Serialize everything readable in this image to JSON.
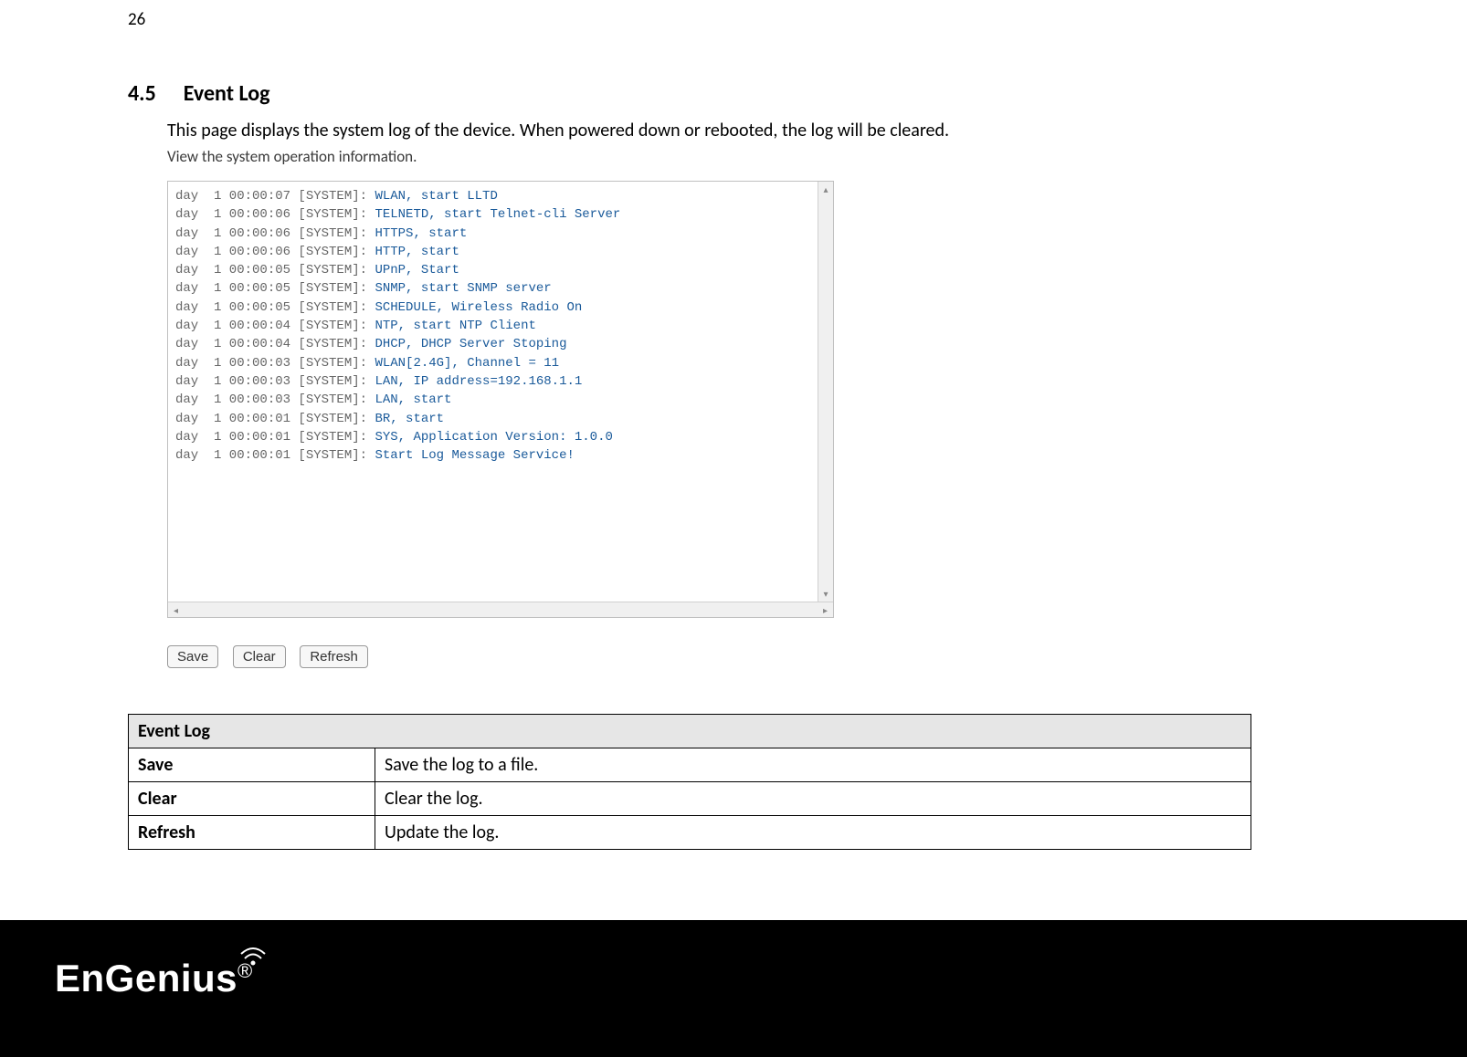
{
  "page_number": "26",
  "heading_number": "4.5",
  "heading_title": "Event Log",
  "description": "This page displays the system log of the device. When powered down or rebooted, the log will be cleared.",
  "subcaption": "View the system operation information.",
  "log_lines": [
    {
      "p": "day  1 00:00:07 [SYSTEM]: ",
      "m": "WLAN, start LLTD"
    },
    {
      "p": "day  1 00:00:06 [SYSTEM]: ",
      "m": "TELNETD, start Telnet-cli Server"
    },
    {
      "p": "day  1 00:00:06 [SYSTEM]: ",
      "m": "HTTPS, start"
    },
    {
      "p": "day  1 00:00:06 [SYSTEM]: ",
      "m": "HTTP, start"
    },
    {
      "p": "day  1 00:00:05 [SYSTEM]: ",
      "m": "UPnP, Start"
    },
    {
      "p": "day  1 00:00:05 [SYSTEM]: ",
      "m": "SNMP, start SNMP server"
    },
    {
      "p": "day  1 00:00:05 [SYSTEM]: ",
      "m": "SCHEDULE, Wireless Radio On"
    },
    {
      "p": "day  1 00:00:04 [SYSTEM]: ",
      "m": "NTP, start NTP Client"
    },
    {
      "p": "day  1 00:00:04 [SYSTEM]: ",
      "m": "DHCP, DHCP Server Stoping"
    },
    {
      "p": "day  1 00:00:03 [SYSTEM]: ",
      "m": "WLAN[2.4G], Channel = 11"
    },
    {
      "p": "day  1 00:00:03 [SYSTEM]: ",
      "m": "LAN, IP address=192.168.1.1"
    },
    {
      "p": "day  1 00:00:03 [SYSTEM]: ",
      "m": "LAN, start"
    },
    {
      "p": "day  1 00:00:01 [SYSTEM]: ",
      "m": "BR, start"
    },
    {
      "p": "day  1 00:00:01 [SYSTEM]: ",
      "m": "SYS, Application Version: 1.0.0"
    },
    {
      "p": "day  1 00:00:01 [SYSTEM]: ",
      "m": "Start Log Message Service!"
    }
  ],
  "buttons": {
    "save": "Save",
    "clear": "Clear",
    "refresh": "Refresh"
  },
  "table": {
    "header": "Event Log",
    "rows": [
      {
        "key": "Save",
        "val": "Save the log to a file."
      },
      {
        "key": "Clear",
        "val": "Clear the log."
      },
      {
        "key": "Refresh",
        "val": "Update the log."
      }
    ]
  },
  "logo_text": "EnGenius",
  "logo_reg": "®",
  "colors": {
    "log_prefix": "#666666",
    "log_message": "#1a5a9a",
    "table_header_bg": "#e6e6e6",
    "footer_bg": "#000000",
    "page_bg": "#ffffff"
  }
}
